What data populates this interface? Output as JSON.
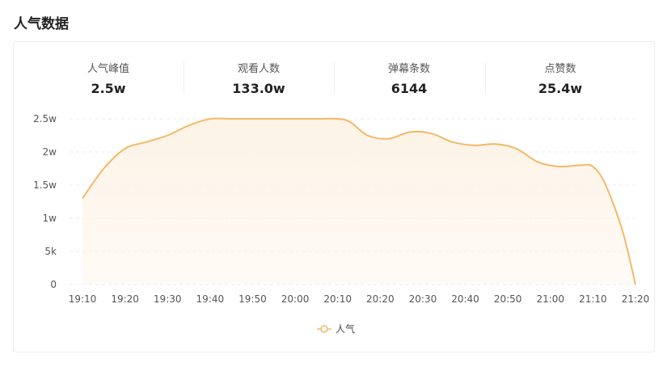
{
  "header": {
    "title": "人气数据"
  },
  "stats": [
    {
      "label": "人气峰值",
      "value": "2.5w"
    },
    {
      "label": "观看人数",
      "value": "133.0w"
    },
    {
      "label": "弹幕条数",
      "value": "6144"
    },
    {
      "label": "点赞数",
      "value": "25.4w"
    }
  ],
  "colors": {
    "line": "#f5b867",
    "area": "#fdf3e6",
    "grid": "#ebebeb"
  },
  "chart_data": {
    "type": "area",
    "title": "",
    "xlabel": "",
    "ylabel": "",
    "ylim": [
      0,
      25000
    ],
    "y_ticks": [
      {
        "value": 0,
        "label": "0"
      },
      {
        "value": 5000,
        "label": "5k"
      },
      {
        "value": 10000,
        "label": "1w"
      },
      {
        "value": 15000,
        "label": "1.5w"
      },
      {
        "value": 20000,
        "label": "2w"
      },
      {
        "value": 25000,
        "label": "2.5w"
      }
    ],
    "x_ticks": [
      "19:10",
      "19:20",
      "19:30",
      "19:40",
      "19:50",
      "20:00",
      "20:10",
      "20:20",
      "20:30",
      "20:40",
      "20:50",
      "21:00",
      "21:10",
      "21:20"
    ],
    "grid": true,
    "legend_position": "bottom",
    "series": [
      {
        "name": "人气",
        "x": [
          "19:10",
          "19:15",
          "19:20",
          "19:25",
          "19:30",
          "19:35",
          "19:40",
          "19:45",
          "19:50",
          "19:55",
          "20:00",
          "20:05",
          "20:10",
          "20:13",
          "20:17",
          "20:22",
          "20:27",
          "20:32",
          "20:37",
          "20:42",
          "20:47",
          "20:52",
          "20:57",
          "21:02",
          "21:07",
          "21:10",
          "21:13",
          "21:17",
          "21:20"
        ],
        "values": [
          13000,
          17500,
          20500,
          21500,
          22500,
          24000,
          25000,
          25000,
          25000,
          25000,
          25000,
          25000,
          25000,
          24500,
          22500,
          22000,
          23000,
          22800,
          21500,
          21000,
          21200,
          20500,
          18500,
          17800,
          18000,
          17800,
          15000,
          8000,
          0
        ]
      }
    ]
  }
}
